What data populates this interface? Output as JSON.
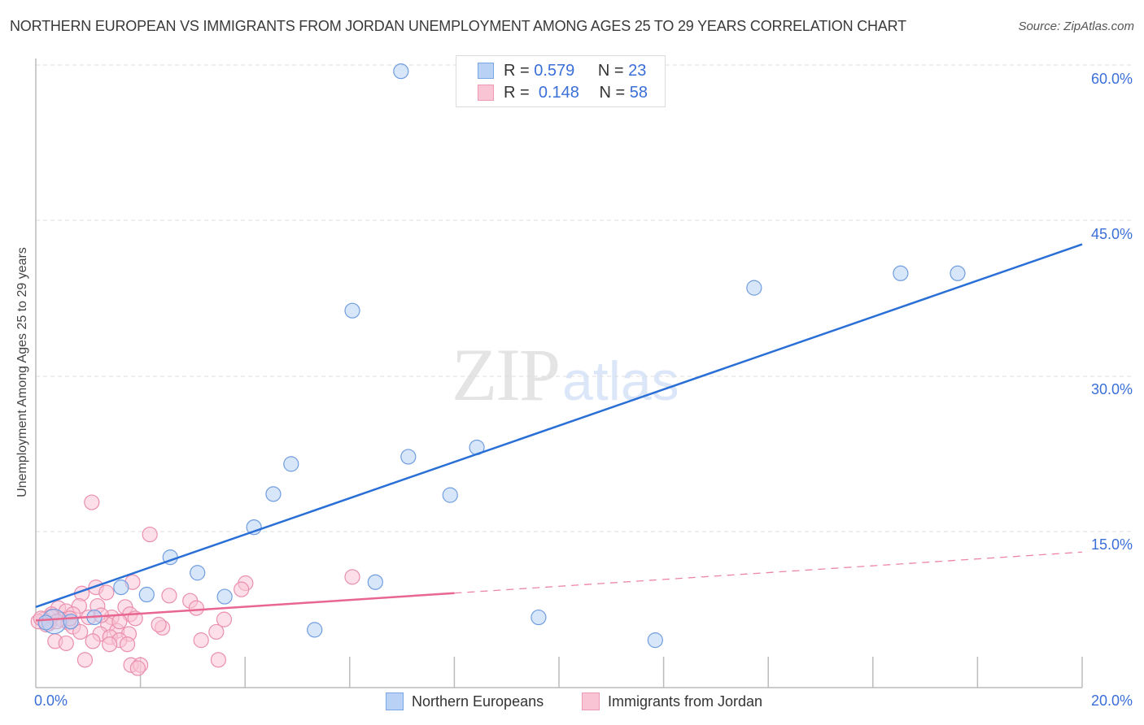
{
  "header": {
    "title": "NORTHERN EUROPEAN VS IMMIGRANTS FROM JORDAN UNEMPLOYMENT AMONG AGES 25 TO 29 YEARS CORRELATION CHART",
    "source": "Source: ZipAtlas.com"
  },
  "watermark": {
    "zip": "ZIP",
    "atlas": "atlas"
  },
  "stats_legend": [
    {
      "r_label": "R =",
      "r_value": "0.579",
      "n_label": "N =",
      "n_value": "23",
      "color": "#b8d1f4"
    },
    {
      "r_label": "R =",
      "r_value": "0.148",
      "n_label": "N =",
      "n_value": "58",
      "color": "#f9c5d5"
    }
  ],
  "axes": {
    "ylabel": "Unemployment Among Ages 25 to 29 years",
    "x_min_label": "0.0%",
    "x_max_label": "20.0%",
    "y_ticks": [
      "60.0%",
      "45.0%",
      "30.0%",
      "15.0%"
    ]
  },
  "series_legend": [
    {
      "label": "Northern Europeans",
      "color": "#b8d1f4"
    },
    {
      "label": "Immigrants from Jordan",
      "color": "#f9c5d5"
    }
  ],
  "colors": {
    "blue_fill": "#b8d1f4",
    "blue_stroke": "#6f9de0",
    "blue_line": "#2a6fd6",
    "pink_fill": "#f9c5d5",
    "pink_stroke": "#ea8fae",
    "pink_line": "#e8668f",
    "tick_label": "#3a6fd8"
  },
  "chart_data": {
    "type": "scatter",
    "title": "NORTHERN EUROPEAN VS IMMIGRANTS FROM JORDAN UNEMPLOYMENT AMONG AGES 25 TO 29 YEARS CORRELATION CHART",
    "xlabel": "",
    "ylabel": "Unemployment Among Ages 25 to 29 years",
    "xlim": [
      0,
      20
    ],
    "ylim": [
      0,
      60
    ],
    "x_ticks": [
      "0.0%",
      "20.0%"
    ],
    "y_ticks": [
      "15.0%",
      "30.0%",
      "45.0%",
      "60.0%"
    ],
    "grid": "horizontal dashed",
    "legend_position": "bottom",
    "series": [
      {
        "name": "Northern Europeans",
        "R": 0.579,
        "N": 23,
        "trend": {
          "x": [
            0,
            20
          ],
          "y": [
            7.7,
            42.7
          ]
        },
        "points": [
          [
            6.98,
            59.4
          ],
          [
            6.05,
            36.3
          ],
          [
            13.73,
            38.5
          ],
          [
            16.53,
            39.9
          ],
          [
            17.62,
            39.9
          ],
          [
            8.43,
            23.1
          ],
          [
            7.12,
            22.2
          ],
          [
            4.88,
            21.5
          ],
          [
            4.54,
            18.6
          ],
          [
            7.92,
            18.5
          ],
          [
            4.17,
            15.4
          ],
          [
            2.57,
            12.5
          ],
          [
            3.09,
            11.0
          ],
          [
            1.63,
            9.6
          ],
          [
            2.12,
            8.9
          ],
          [
            6.49,
            10.1
          ],
          [
            3.61,
            8.7
          ],
          [
            9.61,
            6.7
          ],
          [
            5.33,
            5.5
          ],
          [
            11.84,
            4.5
          ],
          [
            1.12,
            6.7
          ],
          [
            0.67,
            6.3
          ],
          [
            0.19,
            6.2
          ]
        ]
      },
      {
        "name": "Immigrants from Jordan",
        "R": 0.148,
        "N": 58,
        "trend": {
          "x": [
            0,
            20
          ],
          "y": [
            6.4,
            13.0
          ],
          "solid_until_x": 8.0
        },
        "points": [
          [
            1.07,
            17.8
          ],
          [
            2.18,
            14.7
          ],
          [
            6.05,
            10.6
          ],
          [
            4.01,
            10.0
          ],
          [
            3.93,
            9.4
          ],
          [
            1.85,
            10.1
          ],
          [
            1.15,
            9.6
          ],
          [
            0.88,
            9.0
          ],
          [
            1.35,
            9.1
          ],
          [
            2.55,
            8.8
          ],
          [
            0.83,
            7.8
          ],
          [
            1.18,
            7.8
          ],
          [
            1.71,
            7.7
          ],
          [
            0.43,
            7.6
          ],
          [
            0.58,
            7.3
          ],
          [
            2.95,
            8.3
          ],
          [
            3.07,
            7.6
          ],
          [
            1.8,
            7.0
          ],
          [
            0.71,
            7.0
          ],
          [
            0.3,
            7.0
          ],
          [
            1.45,
            6.7
          ],
          [
            1.01,
            6.7
          ],
          [
            0.5,
            6.5
          ],
          [
            0.15,
            6.5
          ],
          [
            0.05,
            6.3
          ],
          [
            0.25,
            6.1
          ],
          [
            0.62,
            6.2
          ],
          [
            1.38,
            6.0
          ],
          [
            3.6,
            6.5
          ],
          [
            2.42,
            5.7
          ],
          [
            0.71,
            5.8
          ],
          [
            1.55,
            5.4
          ],
          [
            1.23,
            5.1
          ],
          [
            1.78,
            5.1
          ],
          [
            0.85,
            5.3
          ],
          [
            1.42,
            4.8
          ],
          [
            3.45,
            5.3
          ],
          [
            1.09,
            4.4
          ],
          [
            3.16,
            4.5
          ],
          [
            1.6,
            4.5
          ],
          [
            0.37,
            4.4
          ],
          [
            1.41,
            4.1
          ],
          [
            0.58,
            4.2
          ],
          [
            1.75,
            4.1
          ],
          [
            0.94,
            2.6
          ],
          [
            3.49,
            2.6
          ],
          [
            1.82,
            2.1
          ],
          [
            2.0,
            2.1
          ],
          [
            1.95,
            1.8
          ],
          [
            0.3,
            6.8
          ],
          [
            0.1,
            6.6
          ],
          [
            0.4,
            6.3
          ],
          [
            0.2,
            6.0
          ],
          [
            0.65,
            6.6
          ],
          [
            1.25,
            6.9
          ],
          [
            1.9,
            6.6
          ],
          [
            2.35,
            6.0
          ],
          [
            1.6,
            6.3
          ]
        ]
      }
    ]
  }
}
